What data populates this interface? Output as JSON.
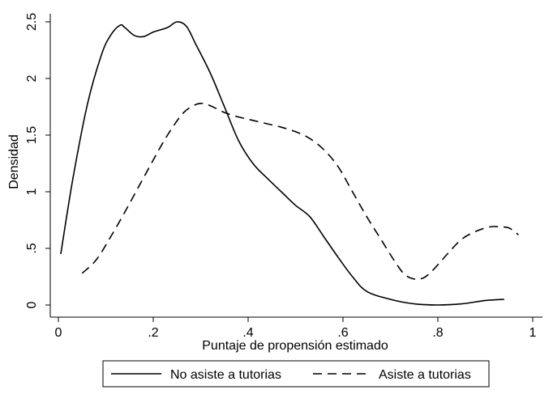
{
  "chart_data": {
    "type": "line",
    "title": "",
    "xlabel": "Puntaje de propensión estimado",
    "ylabel": "Densidad",
    "xlim": [
      0,
      1
    ],
    "ylim": [
      0,
      2.5
    ],
    "x_ticks": [
      0,
      0.2,
      0.4,
      0.6,
      0.8,
      1
    ],
    "x_tick_labels": [
      "0",
      ".2",
      ".4",
      ".6",
      ".8",
      "1"
    ],
    "y_ticks": [
      0,
      0.5,
      1,
      1.5,
      2,
      2.5
    ],
    "y_tick_labels": [
      "0",
      ".5",
      "1",
      "1.5",
      "2",
      "2.5"
    ],
    "grid": false,
    "legend_position": "bottom",
    "series": [
      {
        "name": "No asiste a tutorias",
        "style": "solid",
        "color": "#000000",
        "x": [
          0.005,
          0.03,
          0.06,
          0.09,
          0.11,
          0.13,
          0.14,
          0.16,
          0.18,
          0.2,
          0.23,
          0.25,
          0.27,
          0.29,
          0.32,
          0.35,
          0.38,
          0.41,
          0.44,
          0.47,
          0.5,
          0.53,
          0.56,
          0.59,
          0.62,
          0.65,
          0.7,
          0.75,
          0.8,
          0.85,
          0.9,
          0.94
        ],
        "y": [
          0.45,
          1.1,
          1.75,
          2.2,
          2.38,
          2.47,
          2.45,
          2.38,
          2.37,
          2.41,
          2.45,
          2.5,
          2.46,
          2.3,
          2.05,
          1.75,
          1.45,
          1.25,
          1.12,
          1.0,
          0.88,
          0.78,
          0.6,
          0.42,
          0.25,
          0.12,
          0.05,
          0.01,
          0.0,
          0.01,
          0.04,
          0.05
        ]
      },
      {
        "name": "Asiste a tutorias",
        "style": "dashed",
        "color": "#000000",
        "x": [
          0.05,
          0.08,
          0.11,
          0.14,
          0.17,
          0.2,
          0.23,
          0.26,
          0.28,
          0.3,
          0.32,
          0.35,
          0.38,
          0.41,
          0.44,
          0.47,
          0.5,
          0.53,
          0.56,
          0.59,
          0.62,
          0.65,
          0.68,
          0.71,
          0.73,
          0.75,
          0.77,
          0.79,
          0.82,
          0.85,
          0.88,
          0.91,
          0.93,
          0.95,
          0.97
        ],
        "y": [
          0.28,
          0.4,
          0.6,
          0.82,
          1.05,
          1.28,
          1.5,
          1.68,
          1.75,
          1.78,
          1.76,
          1.7,
          1.66,
          1.63,
          1.6,
          1.57,
          1.53,
          1.47,
          1.37,
          1.22,
          1.0,
          0.78,
          0.58,
          0.38,
          0.27,
          0.23,
          0.24,
          0.31,
          0.45,
          0.58,
          0.65,
          0.69,
          0.69,
          0.68,
          0.62
        ]
      }
    ]
  }
}
